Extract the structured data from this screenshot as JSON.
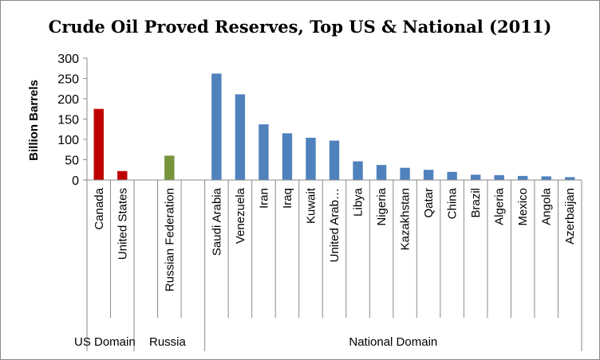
{
  "chart_data": {
    "type": "bar",
    "title": "Crude Oil Proved Reserves,  Top US & National (2011)",
    "xlabel": "",
    "ylabel": "Billion Barrels",
    "ylim": [
      0,
      300
    ],
    "yticks": [
      0,
      50,
      100,
      150,
      200,
      250,
      300
    ],
    "grid": false,
    "legend": "none",
    "categories": [
      "Canada",
      "United States",
      "",
      "Russian Federation",
      "",
      "Saudi Arabia",
      "Venezuela",
      "Iran",
      "Iraq",
      "Kuwait",
      "United Arab…",
      "Libya",
      "Nigeria",
      "Kazakhstan",
      "Qatar",
      "China",
      "Brazil",
      "Algeria",
      "Mexico",
      "Angola",
      "Azerbaijan"
    ],
    "values": [
      175,
      22,
      null,
      60,
      null,
      262,
      211,
      137,
      115,
      104,
      97,
      46,
      37,
      30,
      25,
      20,
      13,
      12,
      10,
      9,
      7
    ],
    "bar_colors": [
      "#c00000",
      "#c00000",
      "",
      "#77933c",
      "",
      "#4f81bd",
      "#4f81bd",
      "#4f81bd",
      "#4f81bd",
      "#4f81bd",
      "#4f81bd",
      "#4f81bd",
      "#4f81bd",
      "#4f81bd",
      "#4f81bd",
      "#4f81bd",
      "#4f81bd",
      "#4f81bd",
      "#4f81bd",
      "#4f81bd",
      "#4f81bd"
    ],
    "groups": [
      {
        "label": "US Domain",
        "span": [
          0,
          1
        ]
      },
      {
        "label": "Russia",
        "span": [
          2,
          4
        ]
      },
      {
        "label": "National Domain",
        "span": [
          5,
          20
        ]
      }
    ]
  }
}
